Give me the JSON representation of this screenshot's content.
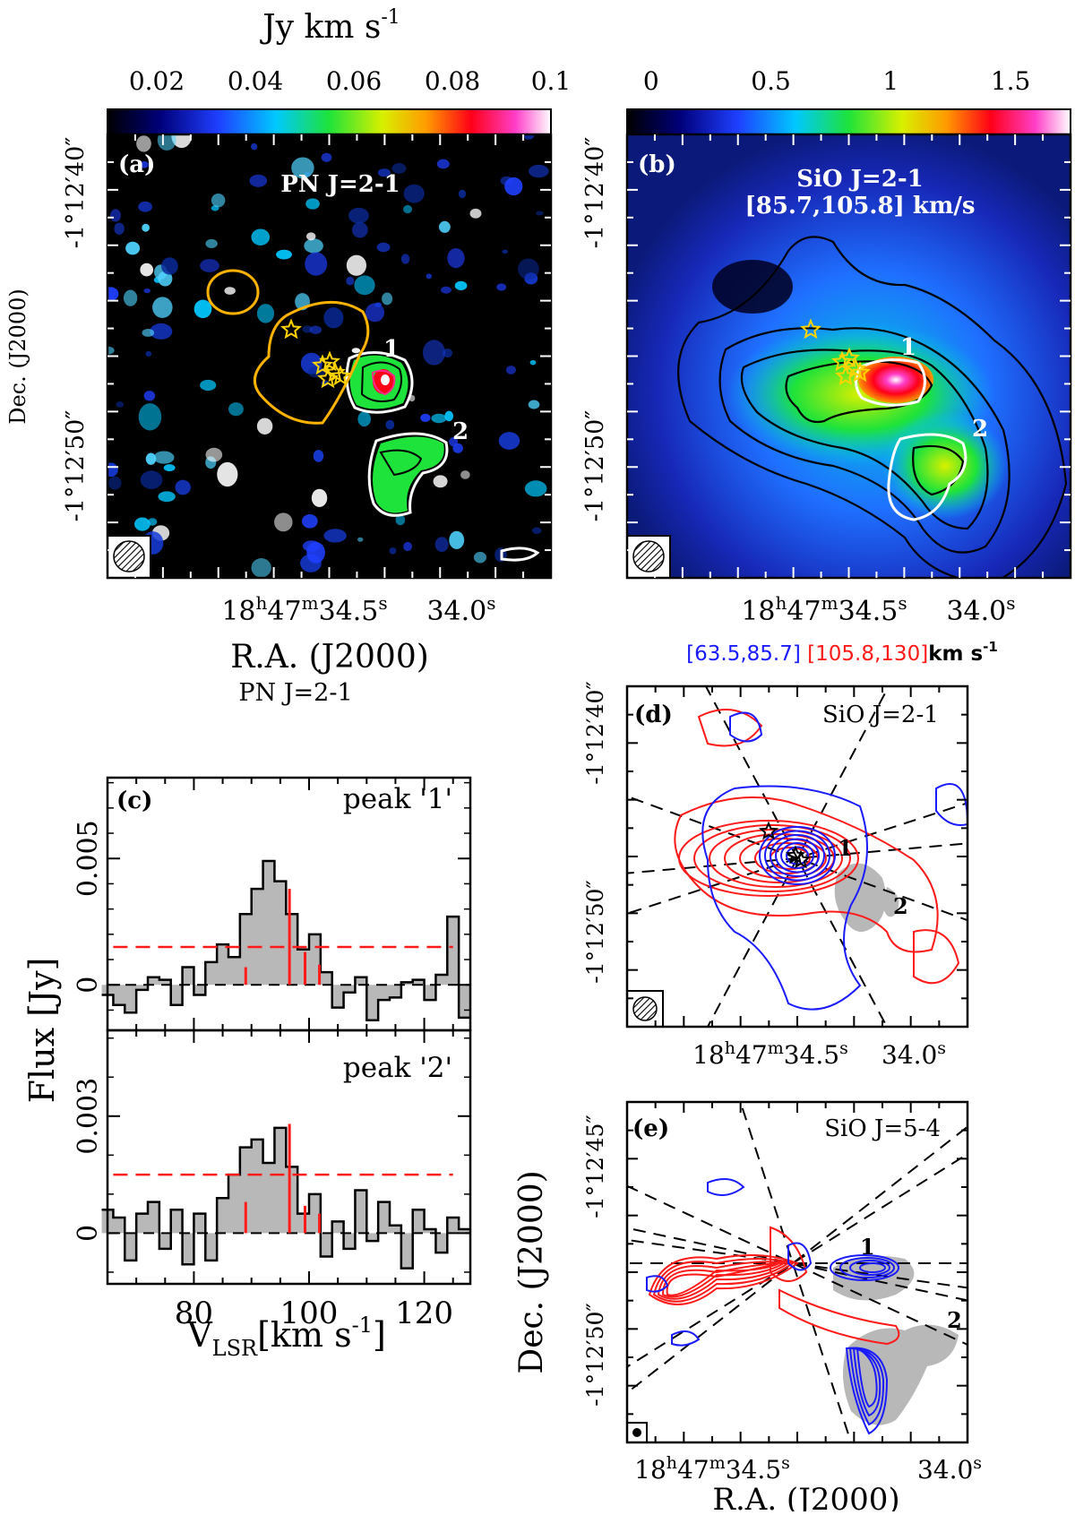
{
  "chart_data": [
    {
      "panel": "(a)",
      "type": "heatmap",
      "title": "PN J=2-1",
      "colorbar": {
        "label": "Jy km s",
        "label_exp": "-1",
        "ticks": [
          "0.02",
          "0.04",
          "0.06",
          "0.08",
          "0.1"
        ],
        "range": [
          0.01,
          0.1
        ]
      },
      "xlabel": "R.A. (J2000)",
      "ylabel": "Dec. (J2000)",
      "xticks": [
        {
          "h": "18",
          "hs": "h",
          "m": "47",
          "ms": "m",
          "s": "34.5",
          "ss": "s"
        },
        {
          "s": "34.0",
          "ss": "s"
        }
      ],
      "yticks": [
        "-1°12′40″",
        "-1°12′50″"
      ],
      "peaks": [
        "1",
        "2"
      ]
    },
    {
      "panel": "(b)",
      "type": "heatmap",
      "title": "SiO J=2-1",
      "subtitle": "[85.7,105.8] km/s",
      "colorbar": {
        "ticks": [
          "0",
          "0.5",
          "1",
          "1.5"
        ],
        "range": [
          -0.1,
          1.75
        ]
      },
      "xlabel": "R.A. (J2000)",
      "xticks": [
        {
          "h": "18",
          "hs": "h",
          "m": "47",
          "ms": "m",
          "s": "34.5",
          "ss": "s"
        },
        {
          "s": "34.0",
          "ss": "s"
        }
      ],
      "yticks": [
        "-1°12′40″",
        "-1°12′50″"
      ],
      "peaks": [
        "1",
        "2"
      ]
    },
    {
      "panel": "(c)",
      "type": "line",
      "title": "PN J=2-1",
      "xlabel": "V",
      "xlabel_sub": "LSR",
      "xlabel_unit": "[km s",
      "xlabel_exp": "-1",
      "xlabel_close": "]",
      "ylabel": "Flux [Jy]",
      "xlim": [
        65,
        128
      ],
      "xticks": [
        "80",
        "100",
        "120"
      ],
      "subplots": [
        {
          "label": "peak '1'",
          "ylim": [
            -0.0018,
            0.0082
          ],
          "yticks": [
            "0",
            "0.005"
          ],
          "threshold": 0.0015,
          "velocities": [
            65,
            67,
            69,
            71,
            73,
            75,
            77,
            79,
            81,
            83,
            85,
            87,
            89,
            91,
            93,
            95,
            97,
            99,
            101,
            103,
            105,
            107,
            109,
            111,
            113,
            115,
            117,
            119,
            121,
            123,
            125,
            127
          ],
          "values": [
            -0.0004,
            -0.0008,
            -0.0011,
            -0.0002,
            0.0003,
            0.0002,
            -0.0008,
            0.0007,
            -0.0004,
            0.0009,
            0.0016,
            0.0011,
            0.0028,
            0.0038,
            0.0049,
            0.0041,
            0.0028,
            0.0014,
            0.002,
            0.0005,
            -0.0009,
            -0.0003,
            0.0003,
            -0.0014,
            -0.0006,
            -0.0005,
            0.0001,
            0.0002,
            -0.0006,
            0.0004,
            0.0027,
            -0.0013
          ],
          "lines": [
            {
              "v": 89.0,
              "h": 0.0007
            },
            {
              "v": 96.6,
              "h": 0.0038
            },
            {
              "v": 99.3,
              "h": 0.0013
            },
            {
              "v": 101.8,
              "h": 0.0008
            }
          ]
        },
        {
          "label": "peak '2'",
          "ylim": [
            -0.0013,
            0.0052
          ],
          "yticks": [
            "0",
            "0.003"
          ],
          "threshold": 0.0015,
          "velocities": [
            65,
            67,
            69,
            71,
            73,
            75,
            77,
            79,
            81,
            83,
            85,
            87,
            89,
            91,
            93,
            95,
            97,
            99,
            101,
            103,
            105,
            107,
            109,
            111,
            113,
            115,
            117,
            119,
            121,
            123,
            125,
            127
          ],
          "values": [
            0.0006,
            0.0004,
            -0.0007,
            0.0005,
            0.0008,
            -0.0004,
            0.0006,
            -0.0008,
            0.0005,
            -0.0007,
            0.0009,
            0.0015,
            0.0022,
            0.0024,
            0.0018,
            0.0027,
            0.0017,
            0.0005,
            0.001,
            -0.0006,
            0.0003,
            -0.0004,
            0.0011,
            -0.0002,
            0.0008,
            0.0002,
            -0.0009,
            0.0006,
            0.0001,
            -0.0005,
            0.0004,
            0.0001
          ],
          "lines": [
            {
              "v": 89.0,
              "h": 0.0008
            },
            {
              "v": 96.6,
              "h": 0.0028
            },
            {
              "v": 99.3,
              "h": 0.0007
            },
            {
              "v": 101.8,
              "h": 0.0005
            }
          ]
        }
      ]
    },
    {
      "panel": "(d)",
      "type": "contour",
      "title": "SiO J=2-1",
      "legend": {
        "blue": "[63.5,85.7]",
        "red": "[105.8,130]",
        "unit": "km s",
        "unit_exp": "-1"
      },
      "xticks": [
        {
          "h": "18",
          "hs": "h",
          "m": "47",
          "ms": "m",
          "s": "34.5",
          "ss": "s"
        },
        {
          "s": "34.0",
          "ss": "s"
        }
      ],
      "yticks": [
        "-1°12′40″",
        "-1°12′50″"
      ],
      "peaks": [
        "1",
        "2"
      ]
    },
    {
      "panel": "(e)",
      "type": "contour",
      "title": "SiO J=5-4",
      "xlabel": "R.A. (J2000)",
      "ylabel": "Dec. (J2000)",
      "xticks": [
        {
          "h": "18",
          "hs": "h",
          "m": "47",
          "ms": "m",
          "s": "34.5",
          "ss": "s"
        },
        {
          "s": "34.0",
          "ss": "s"
        }
      ],
      "yticks": [
        "-1°12′45″",
        "-1°12′50″"
      ],
      "peaks": [
        "1",
        "2"
      ]
    }
  ],
  "colors": {
    "blue": "#1a1aff",
    "red": "#ff1a1a",
    "yellow": "#ffd400",
    "orange": "#ffb300",
    "gray": "#b8b8b8"
  }
}
